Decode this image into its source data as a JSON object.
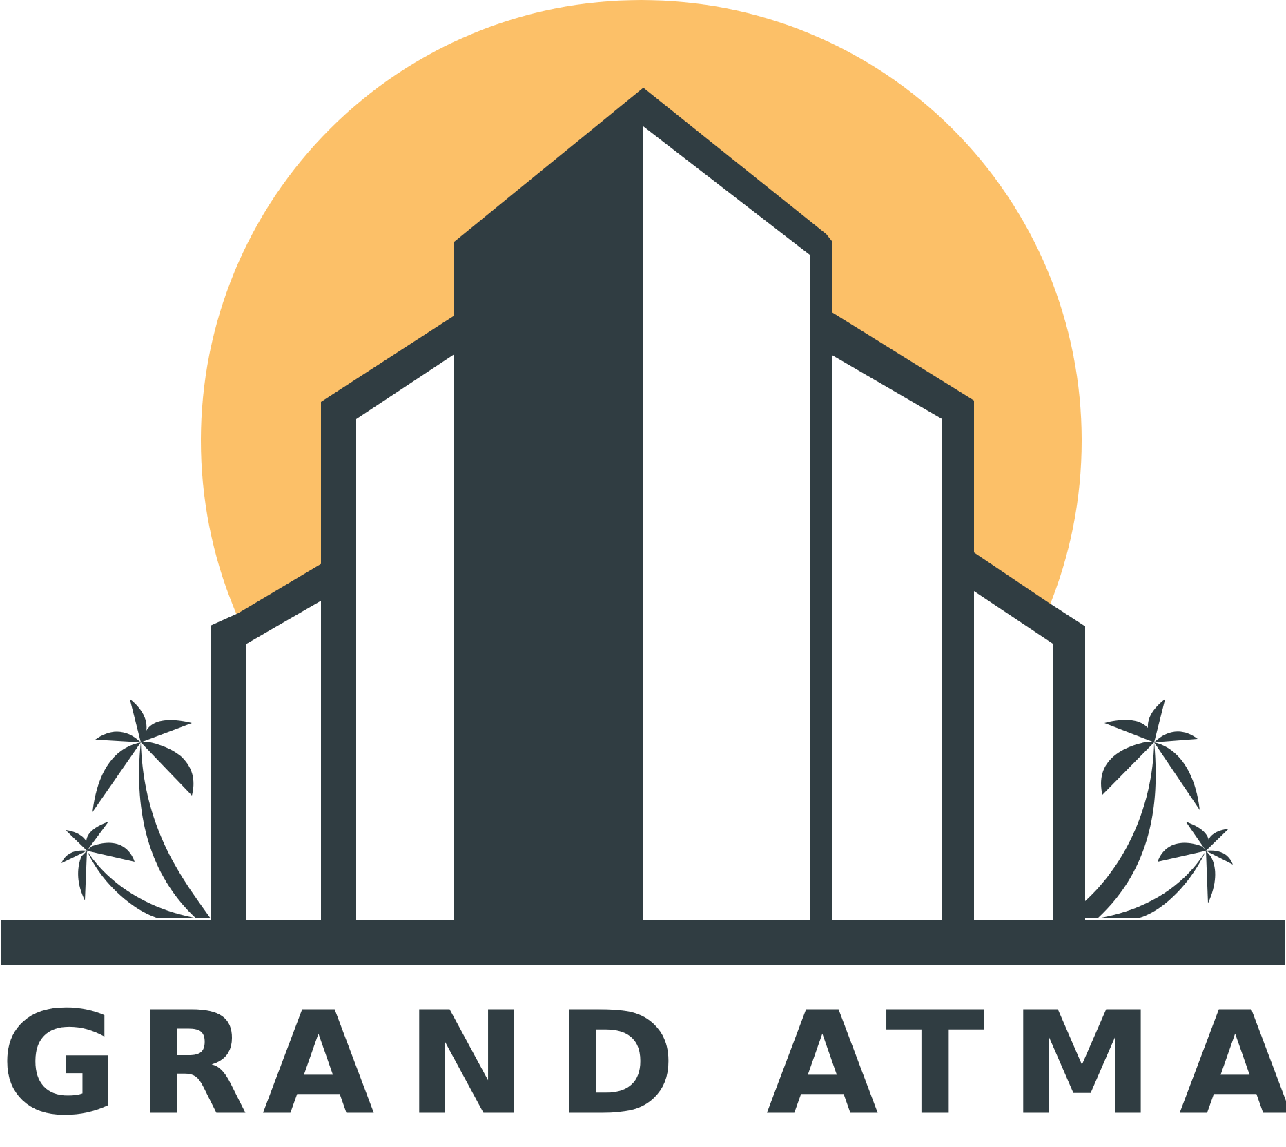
{
  "brand": {
    "name": "GRAND ATMA",
    "letters": [
      "G",
      "R",
      "A",
      "N",
      "D",
      "A",
      "T",
      "M",
      "A"
    ]
  },
  "colors": {
    "sun": "#fcc068",
    "ink": "#303d42",
    "background": "#ffffff"
  },
  "icons": {
    "building": "building-icon",
    "sun": "sun-icon",
    "palm_left": "palm-tree-icon",
    "palm_right": "palm-tree-icon"
  }
}
